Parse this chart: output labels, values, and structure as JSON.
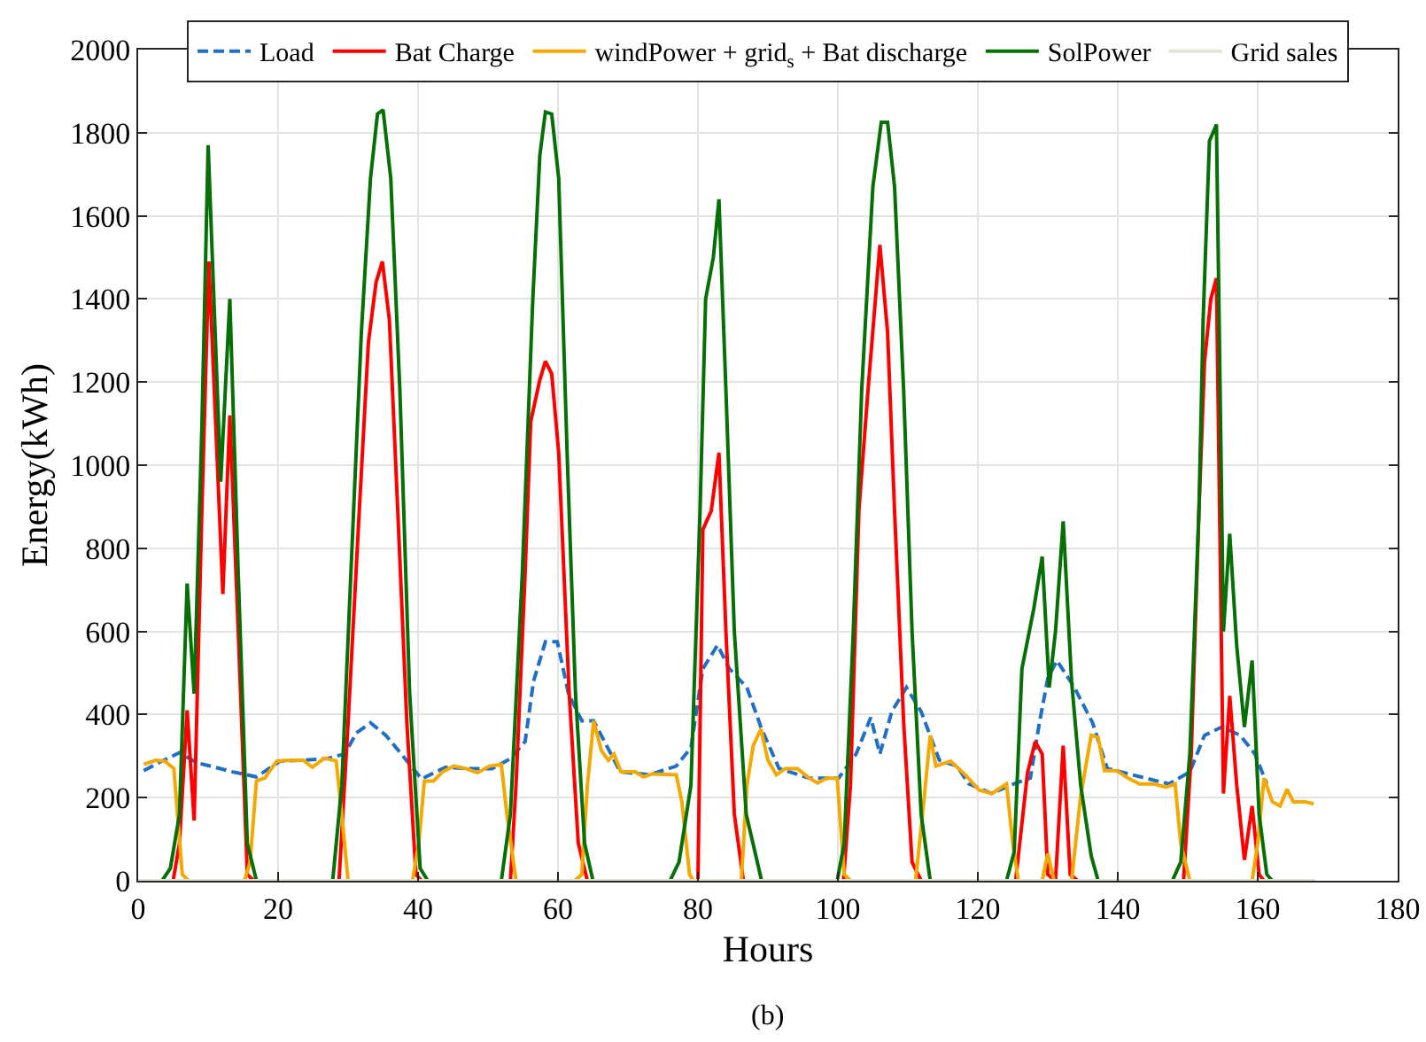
{
  "chart_data": {
    "type": "line",
    "xlabel": "Hours",
    "ylabel": "Energy(kWh)",
    "annotations": [
      "(b)"
    ],
    "xlim": [
      0,
      180
    ],
    "xticks": [
      0,
      20,
      40,
      60,
      80,
      100,
      120,
      140,
      160,
      180
    ],
    "ylim": [
      0,
      2000
    ],
    "yticks": [
      0,
      200,
      400,
      600,
      800,
      1000,
      1200,
      1400,
      1600,
      1800,
      2000
    ],
    "grid": true,
    "legend": "top",
    "series": [
      {
        "name": "Load",
        "color": "#1f6fc8",
        "line_style": "dashed",
        "x": [
          0.8,
          3.4,
          5.9,
          8.4,
          11,
          13.5,
          16.9,
          20.3,
          23.6,
          27,
          29.5,
          31.2,
          33.2,
          35.4,
          37.6,
          40.5,
          43.9,
          47.3,
          50.6,
          53.2,
          55.3,
          56.5,
          58.2,
          59.9,
          61.5,
          63.4,
          65.1,
          68.9,
          73.1,
          76.9,
          79,
          80.7,
          82.8,
          84.5,
          87,
          89.1,
          91.6,
          95.9,
          100.1,
          102.6,
          104.7,
          106,
          107.7,
          109.8,
          111.9,
          114.5,
          117,
          118.7,
          122,
          125.4,
          127.5,
          128.8,
          130,
          131.3,
          133.8,
          136.4,
          138.5,
          147.3,
          150.3,
          152.4,
          154.9,
          157.5,
          159.6,
          161.3
        ],
        "values": [
          265,
          288,
          308,
          284,
          273,
          262,
          250,
          288,
          290,
          294,
          305,
          356,
          380,
          350,
          305,
          245,
          273,
          270,
          270,
          294,
          335,
          480,
          575,
          575,
          450,
          385,
          385,
          262,
          255,
          276,
          320,
          510,
          567,
          510,
          465,
          365,
          270,
          247,
          247,
          305,
          393,
          305,
          407,
          465,
          407,
          290,
          276,
          233,
          210,
          235,
          247,
          380,
          487,
          530,
          465,
          380,
          270,
          233,
          262,
          350,
          370,
          350,
          305,
          233
        ]
      },
      {
        "name": "Bat Charge",
        "color": "#ff0000",
        "x": [
          0,
          5,
          5.9,
          7,
          8,
          9.1,
          10.1,
          11.1,
          12.1,
          13.1,
          14.3,
          15.6,
          16.5,
          28.7,
          30,
          31.6,
          32.9,
          34,
          34.9,
          35.9,
          37.1,
          38.4,
          39.7,
          40.5,
          53.2,
          54,
          55.3,
          56.1,
          57.4,
          58.2,
          59.1,
          60.1,
          61.6,
          62.9,
          64.2,
          80,
          80.7,
          81.9,
          83,
          84,
          85.2,
          86.5,
          100.8,
          101.8,
          103,
          104.3,
          106,
          107.1,
          108.1,
          109.4,
          110.6,
          111.9,
          125.4,
          127.1,
          128.2,
          129.2,
          130,
          131.1,
          132.2,
          133.2,
          134.3,
          149.4,
          150.5,
          151.6,
          152.4,
          153.3,
          154.1,
          155.1,
          156,
          157,
          158.1,
          159.2,
          160.2,
          160.9,
          168
        ],
        "values": [
          0,
          0,
          90,
          410,
          145,
          890,
          1490,
          1090,
          690,
          1120,
          600,
          15,
          0,
          0,
          380,
          890,
          1295,
          1440,
          1490,
          1350,
          890,
          380,
          15,
          0,
          0,
          230,
          740,
          1105,
          1205,
          1250,
          1220,
          1030,
          450,
          90,
          0,
          0,
          845,
          890,
          1030,
          600,
          160,
          0,
          0,
          230,
          890,
          1180,
          1530,
          1320,
          890,
          380,
          45,
          0,
          0,
          260,
          335,
          305,
          15,
          0,
          325,
          15,
          0,
          0,
          305,
          890,
          1250,
          1400,
          1450,
          210,
          445,
          230,
          50,
          180,
          15,
          0,
          0
        ]
      },
      {
        "name": "windPower + grid$_{s}$ + Bat discharge",
        "color": "#f5a800",
        "x": [
          0.8,
          2.5,
          3.8,
          5.1,
          6.3,
          7.2,
          15.2,
          16,
          16.9,
          18.1,
          19.8,
          21.9,
          23.6,
          24.9,
          26.6,
          28.3,
          29.1,
          30,
          39.2,
          40.1,
          40.9,
          42.2,
          43.5,
          45.1,
          46.8,
          48.5,
          50.2,
          51.9,
          52.7,
          54,
          62.4,
          63.4,
          64.2,
          65.1,
          66.2,
          67.2,
          68,
          69,
          71,
          72.2,
          73.5,
          76.9,
          77.7,
          78.8,
          79.4,
          86.2,
          87,
          87.9,
          89,
          90,
          91.2,
          92.5,
          94.2,
          95.9,
          97.1,
          98.4,
          99.9,
          100.9,
          101.8,
          111.1,
          112.1,
          113.2,
          114,
          116.1,
          118.2,
          120.2,
          122,
          124.1,
          125,
          125.8,
          129.2,
          130,
          130.9,
          133.4,
          134.7,
          136.2,
          137.2,
          138.1,
          139.8,
          141.5,
          143.1,
          145.2,
          146.9,
          148.2,
          149,
          150.3,
          159.2,
          160,
          160.9,
          162.1,
          163.2,
          164.2,
          165.1,
          166.8,
          168
        ],
        "values": [
          280,
          290,
          288,
          270,
          15,
          0,
          0,
          45,
          240,
          247,
          288,
          290,
          290,
          273,
          295,
          288,
          160,
          0,
          0,
          90,
          240,
          240,
          262,
          276,
          270,
          260,
          276,
          280,
          160,
          0,
          0,
          15,
          230,
          385,
          313,
          290,
          305,
          262,
          262,
          250,
          257,
          255,
          190,
          15,
          0,
          0,
          230,
          325,
          365,
          290,
          255,
          270,
          270,
          247,
          235,
          247,
          247,
          15,
          0,
          0,
          160,
          350,
          276,
          288,
          255,
          218,
          210,
          233,
          90,
          0,
          0,
          65,
          0,
          0,
          205,
          350,
          345,
          265,
          265,
          247,
          233,
          233,
          225,
          233,
          90,
          0,
          0,
          90,
          247,
          190,
          180,
          220,
          190,
          190,
          185
        ]
      },
      {
        "name": "SolPower",
        "color": "#067006",
        "x": [
          0,
          3.4,
          4.6,
          5.9,
          7,
          8,
          9.1,
          10,
          11,
          11.8,
          13.1,
          14.3,
          15.6,
          16.9,
          27.8,
          29.1,
          30.4,
          31.9,
          33.2,
          34.2,
          35,
          36.1,
          37.4,
          38.8,
          40.3,
          41.4,
          51.9,
          53.2,
          54.9,
          56.4,
          57.4,
          58.2,
          59.1,
          60.1,
          61.3,
          62.5,
          63.8,
          65,
          76,
          77.3,
          79,
          80.3,
          81.1,
          82.2,
          83,
          84,
          85.2,
          86.9,
          89.1,
          99.9,
          100.9,
          102.2,
          103.4,
          105,
          106.2,
          107.1,
          108.1,
          109.4,
          110.6,
          111.9,
          113.2,
          124.1,
          125.2,
          126.3,
          128,
          129.2,
          130.2,
          131.1,
          132.2,
          133.4,
          134.7,
          136.2,
          137.2,
          147.8,
          149,
          150.3,
          151.6,
          152.2,
          153.1,
          154.1,
          155.1,
          156,
          157,
          158.1,
          159.2,
          160.2,
          161.3,
          162.1,
          168
        ],
        "values": [
          0,
          0,
          30,
          160,
          715,
          450,
          1090,
          1770,
          1320,
          960,
          1400,
          740,
          90,
          0,
          0,
          230,
          740,
          1320,
          1690,
          1845,
          1855,
          1690,
          1180,
          450,
          30,
          0,
          0,
          160,
          740,
          1400,
          1745,
          1850,
          1845,
          1690,
          1030,
          450,
          90,
          0,
          0,
          45,
          230,
          890,
          1400,
          1500,
          1640,
          1180,
          600,
          160,
          0,
          0,
          90,
          600,
          1180,
          1670,
          1825,
          1825,
          1670,
          1180,
          600,
          160,
          0,
          0,
          70,
          510,
          655,
          780,
          465,
          600,
          865,
          480,
          230,
          60,
          0,
          0,
          45,
          305,
          890,
          1350,
          1780,
          1820,
          600,
          835,
          565,
          370,
          530,
          160,
          15,
          0,
          0
        ]
      },
      {
        "name": "Grid sales",
        "color": "#e4e4d4",
        "x": [
          0,
          168
        ],
        "values": [
          0,
          0
        ]
      }
    ]
  }
}
